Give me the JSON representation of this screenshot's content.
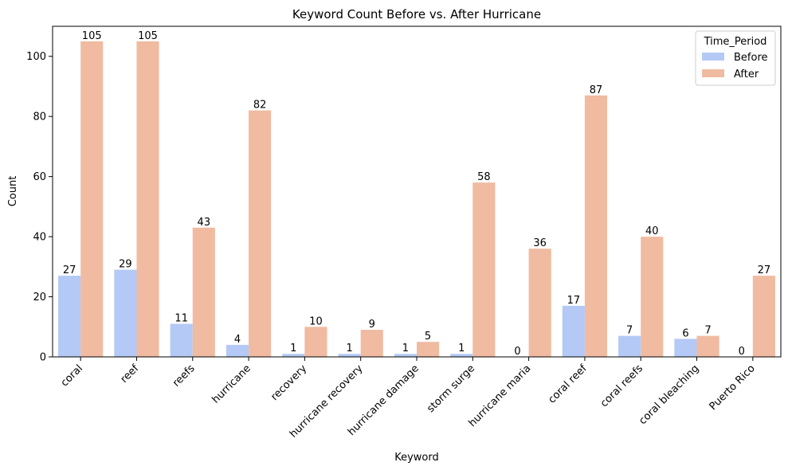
{
  "chart_data": {
    "type": "bar",
    "title": "Keyword Count Before vs. After Hurricane",
    "xlabel": "Keyword",
    "ylabel": "Count",
    "ylim": [
      0,
      110
    ],
    "yticks": [
      0,
      20,
      40,
      60,
      80,
      100
    ],
    "grid": false,
    "legend": {
      "title": "Time_Period",
      "placement": "top-right"
    },
    "categories": [
      "coral",
      "reef",
      "reefs",
      "hurricane",
      "recovery",
      "hurricane recovery",
      "hurricane damage",
      "storm surge",
      "hurricane maria",
      "coral reef",
      "coral reefs",
      "coral bleaching",
      "Puerto Rico"
    ],
    "series": [
      {
        "name": "Before",
        "color": "#b4c9f5",
        "values": [
          27,
          29,
          11,
          4,
          1,
          1,
          1,
          1,
          0,
          17,
          7,
          6,
          0
        ]
      },
      {
        "name": "After",
        "color": "#f0bba1",
        "values": [
          105,
          105,
          43,
          82,
          10,
          9,
          5,
          58,
          36,
          87,
          40,
          7,
          27
        ]
      }
    ]
  }
}
